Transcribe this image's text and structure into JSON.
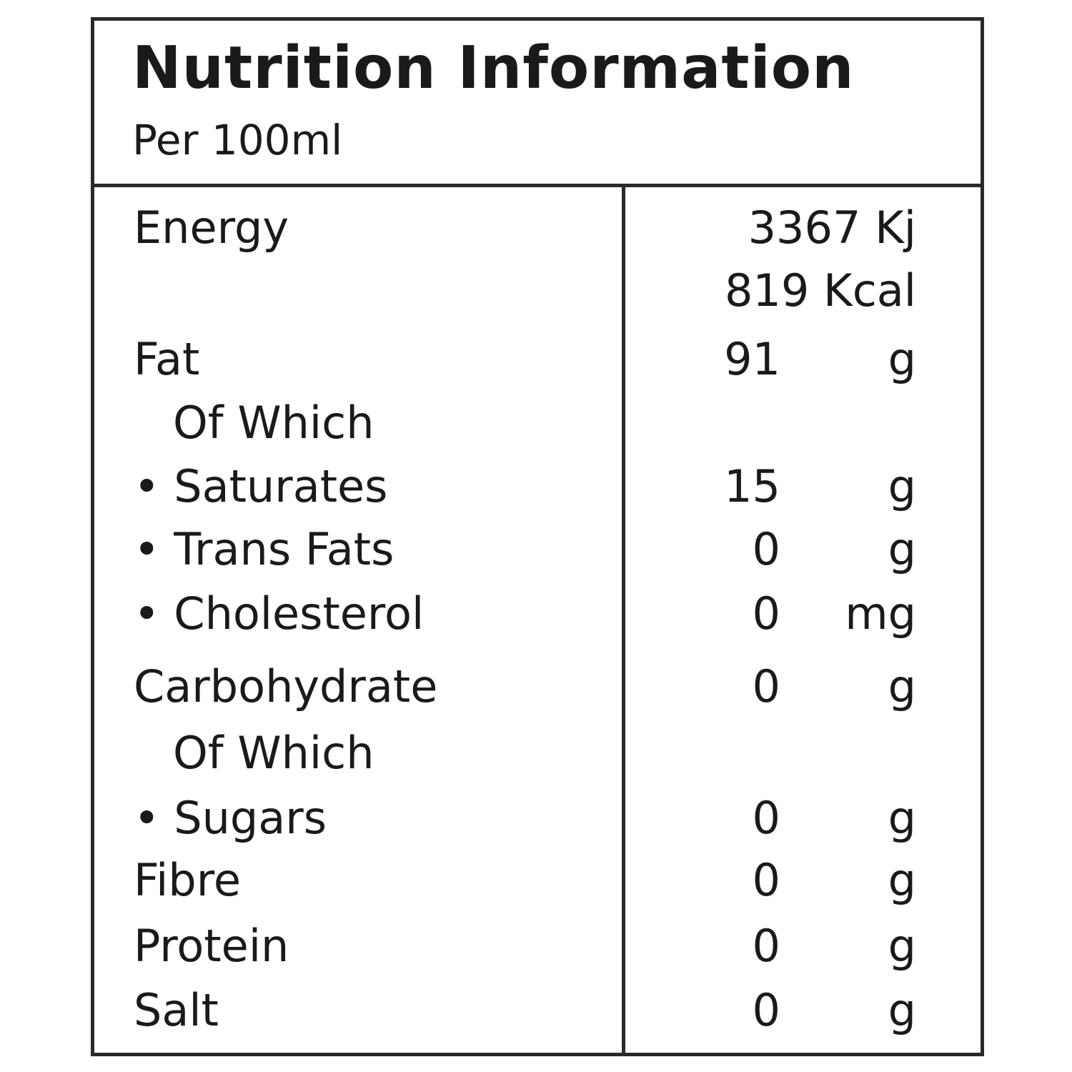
{
  "label": {
    "title": "Nutrition Information",
    "subtitle": "Per 100ml",
    "energy": {
      "name": "Energy",
      "kj": "3367 Kj",
      "kcal": "819 Kcal"
    },
    "rows": [
      {
        "name": "Fat",
        "value": "91",
        "unit": "g"
      },
      {
        "name": "Of Which",
        "value": "",
        "unit": ""
      },
      {
        "name": "• Saturates",
        "value": "15",
        "unit": "g"
      },
      {
        "name": "• Trans Fats",
        "value": "0",
        "unit": "g"
      },
      {
        "name": "• Cholesterol",
        "value": "0",
        "unit": "mg"
      },
      {
        "name": "Carbohydrate",
        "value": "0",
        "unit": "g"
      },
      {
        "name": "Of Which",
        "value": "",
        "unit": ""
      },
      {
        "name": "• Sugars",
        "value": "0",
        "unit": "g"
      },
      {
        "name": "Fibre",
        "value": "0",
        "unit": "g"
      },
      {
        "name": "Protein",
        "value": "0",
        "unit": "g"
      },
      {
        "name": "Salt",
        "value": "0",
        "unit": "g"
      }
    ]
  }
}
